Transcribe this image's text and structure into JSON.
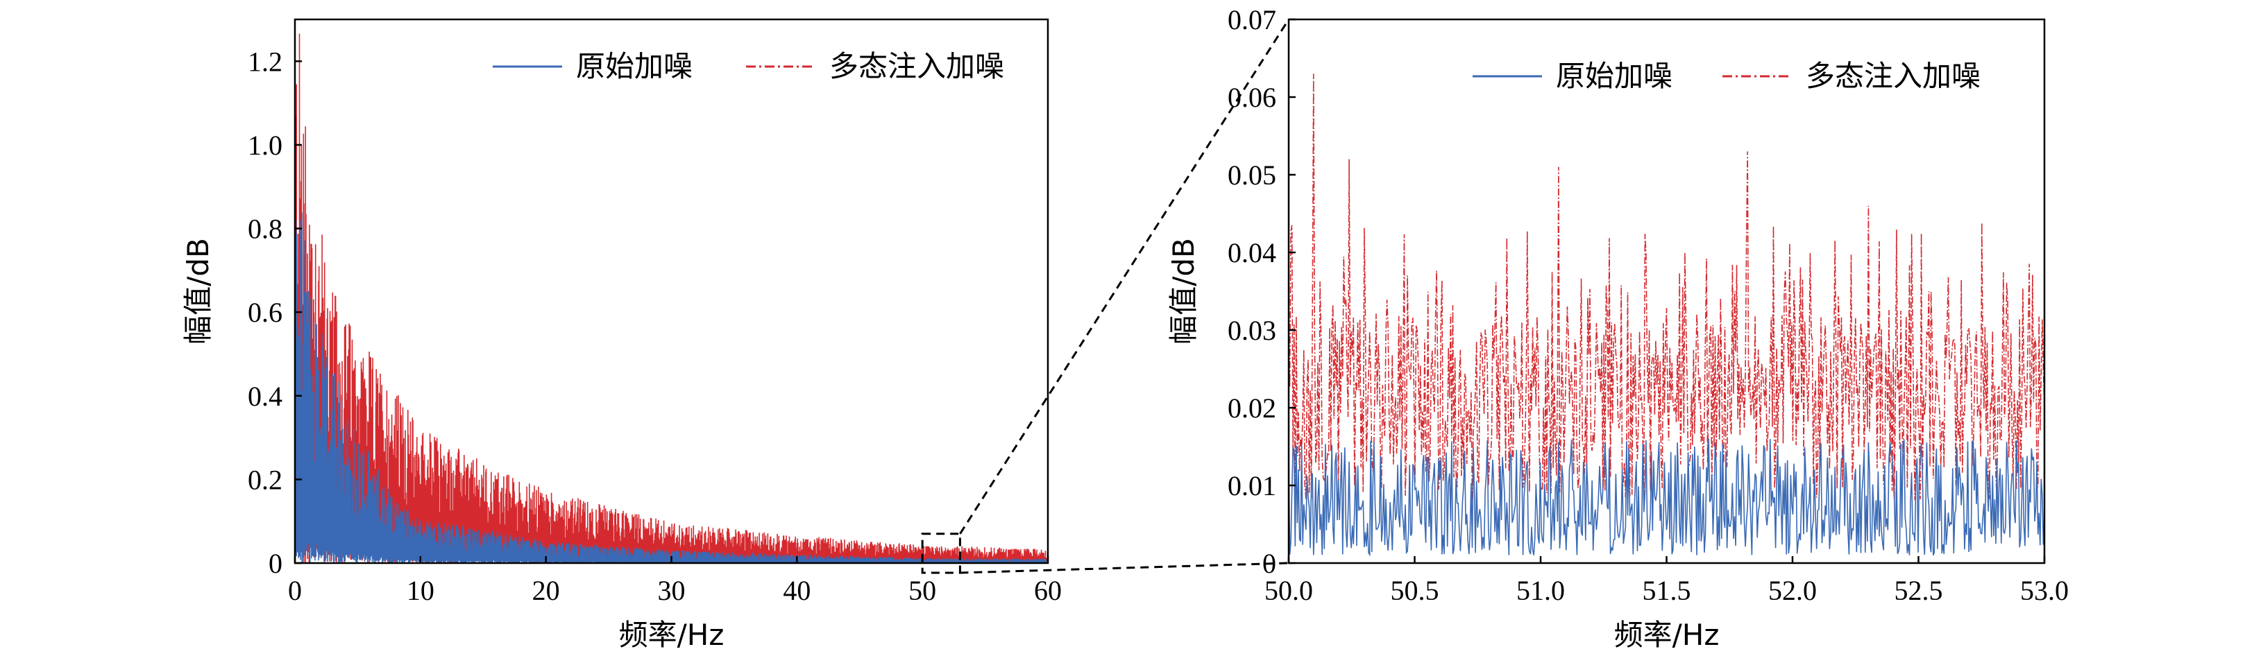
{
  "colors": {
    "original": "#3a6ab5",
    "multistate": "#d42a2f",
    "axis": "#000000"
  },
  "chart_data": [
    {
      "type": "line",
      "panel": "left",
      "xlabel": "频率/Hz",
      "ylabel": "幅值/dB",
      "xlim": [
        0,
        60
      ],
      "ylim": [
        0,
        1.3
      ],
      "xticks": [
        0,
        10,
        20,
        30,
        40,
        50,
        60
      ],
      "xtick_labels": [
        "0",
        "10",
        "20",
        "30",
        "40",
        "50",
        "60"
      ],
      "yticks": [
        0,
        0.2,
        0.4,
        0.6,
        0.8,
        1.0,
        1.2
      ],
      "ytick_labels": [
        "0",
        "0.2",
        "0.4",
        "0.6",
        "0.8",
        "1.0",
        "1.2"
      ],
      "legend": {
        "placement": "top-right",
        "entries": [
          "原始加噪",
          "多态注入加噪"
        ]
      },
      "series": [
        {
          "name": "原始加噪",
          "style": "solid",
          "envelope": {
            "x": [
              0,
              0.5,
              1,
              2,
              3,
              5,
              8,
              10,
              15,
              20,
              30,
              40,
              50,
              60
            ],
            "y": [
              0.9,
              0.85,
              0.7,
              0.55,
              0.45,
              0.3,
              0.15,
              0.1,
              0.08,
              0.05,
              0.03,
              0.02,
              0.012,
              0.01
            ]
          }
        },
        {
          "name": "多态注入加噪",
          "style": "dashdot",
          "envelope": {
            "x": [
              0,
              0.5,
              1,
              2,
              3,
              5,
              8,
              10,
              15,
              20,
              30,
              40,
              50,
              60
            ],
            "y": [
              1.23,
              1.15,
              0.95,
              0.75,
              0.6,
              0.5,
              0.38,
              0.3,
              0.22,
              0.16,
              0.09,
              0.06,
              0.04,
              0.03
            ]
          }
        }
      ],
      "zoom_box": {
        "x": [
          50,
          53
        ],
        "y": [
          0,
          0.07
        ]
      }
    },
    {
      "type": "line",
      "panel": "right",
      "xlabel": "频率/Hz",
      "ylabel": "幅值/dB",
      "xlim": [
        50.0,
        53.0
      ],
      "ylim": [
        0,
        0.07
      ],
      "xticks": [
        50.0,
        50.5,
        51.0,
        51.5,
        52.0,
        52.5,
        53.0
      ],
      "xtick_labels": [
        "50.0",
        "50.5",
        "51.0",
        "51.5",
        "52.0",
        "52.5",
        "53.0"
      ],
      "yticks": [
        0,
        0.01,
        0.02,
        0.03,
        0.04,
        0.05,
        0.06,
        0.07
      ],
      "ytick_labels": [
        "0",
        "0.01",
        "0.02",
        "0.03",
        "0.04",
        "0.05",
        "0.06",
        "0.07"
      ],
      "legend": {
        "placement": "top-right",
        "entries": [
          "原始加噪",
          "多态注入加噪"
        ]
      },
      "series": [
        {
          "name": "原始加噪",
          "style": "solid",
          "mean": 0.007,
          "range": [
            0.001,
            0.016
          ]
        },
        {
          "name": "多态注入加噪",
          "style": "dashdot",
          "mean": 0.02,
          "range": [
            0.008,
            0.063
          ],
          "peaks": [
            {
              "x": 50.1,
              "y": 0.063
            },
            {
              "x": 50.24,
              "y": 0.052
            },
            {
              "x": 51.07,
              "y": 0.051
            },
            {
              "x": 51.82,
              "y": 0.053
            },
            {
              "x": 52.3,
              "y": 0.046
            }
          ]
        }
      ]
    }
  ]
}
